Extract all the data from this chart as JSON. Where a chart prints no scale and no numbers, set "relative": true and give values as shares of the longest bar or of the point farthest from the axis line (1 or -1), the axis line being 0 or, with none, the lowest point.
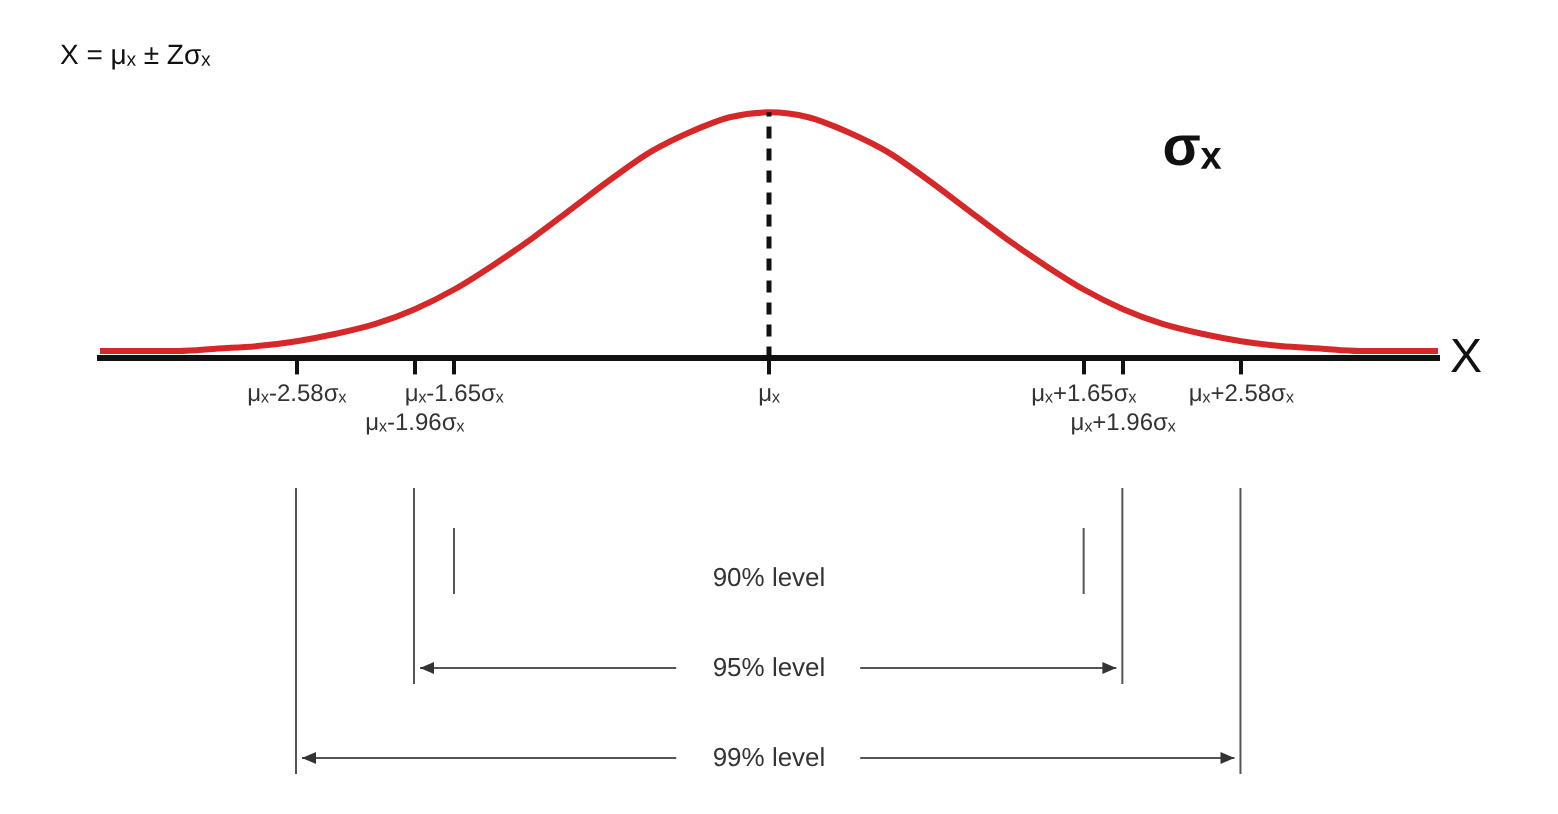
{
  "chart_data": {
    "type": "line",
    "relative": true,
    "xlabel": "X",
    "categories": [
      null,
      null,
      null,
      null,
      null,
      "μₓ-2.58σₓ",
      null,
      null,
      "μₓ-1.96σₓ",
      "μₓ-1.65σₓ",
      null,
      null,
      null,
      null,
      null,
      null,
      null,
      "μₓ",
      null,
      null,
      null,
      null,
      null,
      null,
      null,
      "μₓ+1.65σₓ",
      "μₓ+1.96σₓ",
      null,
      null,
      "μₓ+2.58σₓ",
      null,
      null,
      null,
      null,
      null
    ],
    "series": [
      {
        "color": "#d62828",
        "values": [
          0.03,
          0.03,
          0.03,
          0.04,
          0.05,
          0.07,
          0.1,
          0.14,
          0.2,
          0.28,
          0.38,
          0.49,
          0.61,
          0.73,
          0.84,
          0.92,
          0.98,
          1,
          0.98,
          0.92,
          0.84,
          0.73,
          0.61,
          0.49,
          0.38,
          0.28,
          0.2,
          0.14,
          0.1,
          0.07,
          0.05,
          0.04,
          0.03,
          0.03,
          0.03
        ]
      }
    ],
    "ref_lines": [
      {
        "axis": "x",
        "value": "μₓ",
        "line_style": "dashed",
        "color": "#111111"
      }
    ],
    "annotations": [
      "X = μₓ ± Zσₓ",
      "σₓ",
      "90% level",
      "95% level",
      "99% level"
    ],
    "grid": false,
    "legend": false,
    "marker": "none",
    "line_style": "solid"
  }
}
